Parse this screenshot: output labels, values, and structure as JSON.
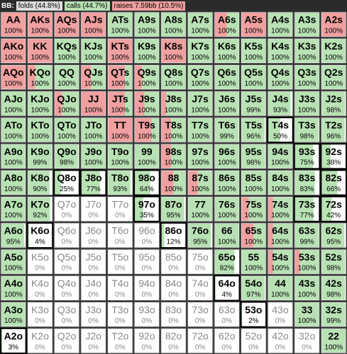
{
  "header": {
    "player": "BB:",
    "folds": "folds (44.8%)",
    "calls": "calls (44.7%)",
    "raises": "raises 7.59bb (10.5%)"
  },
  "grid": {
    "rows": [
      {
        "hands": [
          "AA",
          "AKs",
          "AQs",
          "AJs",
          "ATs",
          "A9s",
          "A8s",
          "A7s",
          "A6s",
          "A5s",
          "A4s",
          "A3s",
          "A2s"
        ],
        "pcts": [
          "100%",
          "100%",
          "100%",
          "100%",
          "100%",
          "100%",
          "100%",
          "100%",
          "100%",
          "100%",
          "100%",
          "100%",
          "100%"
        ],
        "raise": [
          100,
          100,
          100,
          100,
          0,
          0,
          0,
          0,
          50,
          100,
          0,
          0,
          100
        ]
      },
      {
        "hands": [
          "AKo",
          "KK",
          "KQs",
          "KJs",
          "KTs",
          "K9s",
          "K8s",
          "K7s",
          "K6s",
          "K5s",
          "K4s",
          "K3s",
          "K2s"
        ],
        "pcts": [
          "100%",
          "100%",
          "100%",
          "100%",
          "100%",
          "100%",
          "100%",
          "100%",
          "100%",
          "100%",
          "100%",
          "100%",
          "100%"
        ],
        "raise": [
          100,
          100,
          0,
          0,
          100,
          0,
          100,
          0,
          0,
          0,
          0,
          0,
          0
        ]
      },
      {
        "hands": [
          "AQo",
          "KQo",
          "QQ",
          "QJs",
          "QTs",
          "Q9s",
          "Q8s",
          "Q7s",
          "Q6s",
          "Q5s",
          "Q4s",
          "Q3s",
          "Q2s"
        ],
        "pcts": [
          "100%",
          "100%",
          "100%",
          "100%",
          "100%",
          "100%",
          "100%",
          "100%",
          "100%",
          "100%",
          "100%",
          "100%",
          "100%"
        ],
        "raise": [
          100,
          30,
          0,
          40,
          70,
          30,
          0,
          0,
          0,
          0,
          0,
          0,
          0
        ]
      },
      {
        "hands": [
          "AJo",
          "KJo",
          "QJo",
          "JJ",
          "JTs",
          "J9s",
          "J8s",
          "J7s",
          "J6s",
          "J5s",
          "J4s",
          "J3s",
          "J2s"
        ],
        "pcts": [
          "100%",
          "100%",
          "100%",
          "100%",
          "100%",
          "100%",
          "100%",
          "100%",
          "100%",
          "99%",
          "93%",
          "100%",
          "98%"
        ],
        "raise": [
          0,
          0,
          30,
          100,
          70,
          40,
          20,
          0,
          0,
          0,
          0,
          0,
          0
        ]
      },
      {
        "hands": [
          "ATo",
          "KTo",
          "QTo",
          "JTo",
          "TT",
          "T9s",
          "T8s",
          "T7s",
          "T6s",
          "T5s",
          "T4s",
          "T3s",
          "T2s"
        ],
        "pcts": [
          "100%",
          "100%",
          "100%",
          "100%",
          "100%",
          "100%",
          "100%",
          "100%",
          "99%",
          "96%",
          "50%",
          "98%",
          "96%"
        ],
        "raise": [
          0,
          0,
          0,
          0,
          100,
          70,
          40,
          0,
          0,
          0,
          0,
          0,
          0
        ]
      },
      {
        "hands": [
          "A9o",
          "K9o",
          "Q9o",
          "J9o",
          "T9o",
          "99",
          "98s",
          "97s",
          "96s",
          "95s",
          "94s",
          "93s",
          "92s"
        ],
        "pcts": [
          "100%",
          "99%",
          "98%",
          "100%",
          "100%",
          "100%",
          "100%",
          "100%",
          "100%",
          "98%",
          "100%",
          "75%",
          "38%"
        ],
        "raise": [
          0,
          0,
          0,
          0,
          0,
          0,
          40,
          0,
          0,
          0,
          0,
          0,
          0
        ]
      },
      {
        "hands": [
          "A8o",
          "K8o",
          "Q8o",
          "J8o",
          "T8o",
          "98o",
          "88",
          "87s",
          "86s",
          "85s",
          "84s",
          "83s",
          "82s"
        ],
        "pcts": [
          "100%",
          "90%",
          "25%",
          "77%",
          "93%",
          "64%",
          "100%",
          "100%",
          "100%",
          "100%",
          "100%",
          "83%",
          "66%"
        ],
        "raise": [
          0,
          0,
          0,
          0,
          0,
          0,
          50,
          40,
          0,
          0,
          0,
          0,
          0
        ]
      },
      {
        "hands": [
          "A7o",
          "K7o",
          "Q7o",
          "J7o",
          "T7o",
          "97o",
          "87o",
          "77",
          "76s",
          "75s",
          "74s",
          "73s",
          "72s"
        ],
        "pcts": [
          "100%",
          "92%",
          "0%",
          "0%",
          "0%",
          "35%",
          "95%",
          "100%",
          "100%",
          "100%",
          "100%",
          "77%",
          "42%"
        ],
        "raise": [
          0,
          0,
          0,
          0,
          0,
          0,
          0,
          0,
          0,
          30,
          20,
          0,
          0
        ]
      },
      {
        "hands": [
          "A6o",
          "K6o",
          "Q6o",
          "J6o",
          "T6o",
          "96o",
          "86o",
          "76o",
          "66",
          "65s",
          "64s",
          "63s",
          "62s"
        ],
        "pcts": [
          "95%",
          "4%",
          "0%",
          "0%",
          "0%",
          "0%",
          "12%",
          "95%",
          "100%",
          "100%",
          "100%",
          "99%",
          "95%"
        ],
        "raise": [
          0,
          0,
          0,
          0,
          0,
          0,
          0,
          0,
          0,
          50,
          20,
          0,
          0
        ]
      },
      {
        "hands": [
          "A5o",
          "K5o",
          "Q5o",
          "J5o",
          "T5o",
          "95o",
          "85o",
          "75o",
          "65o",
          "55",
          "54s",
          "53s",
          "52s"
        ],
        "pcts": [
          "100%",
          "0%",
          "0%",
          "0%",
          "0%",
          "0%",
          "0%",
          "0%",
          "82%",
          "100%",
          "100%",
          "100%",
          "98%"
        ],
        "raise": [
          0,
          0,
          0,
          0,
          0,
          0,
          0,
          0,
          0,
          0,
          20,
          20,
          0
        ]
      },
      {
        "hands": [
          "A4o",
          "K4o",
          "Q4o",
          "J4o",
          "T4o",
          "94o",
          "84o",
          "74o",
          "64o",
          "54o",
          "44",
          "43s",
          "42s"
        ],
        "pcts": [
          "100%",
          "0%",
          "0%",
          "0%",
          "0%",
          "0%",
          "0%",
          "0%",
          "4%",
          "97%",
          "100%",
          "100%",
          "98%"
        ],
        "raise": [
          0,
          0,
          0,
          0,
          0,
          0,
          0,
          0,
          0,
          0,
          0,
          0,
          0
        ]
      },
      {
        "hands": [
          "A3o",
          "K3o",
          "Q3o",
          "J3o",
          "T3o",
          "93o",
          "83o",
          "73o",
          "63o",
          "53o",
          "43o",
          "33",
          "32s"
        ],
        "pcts": [
          "100%",
          "0%",
          "0%",
          "0%",
          "0%",
          "0%",
          "0%",
          "0%",
          "0%",
          "2%",
          "0%",
          "100%",
          "99%"
        ],
        "raise": [
          0,
          0,
          0,
          0,
          0,
          0,
          0,
          0,
          0,
          0,
          0,
          0,
          0
        ]
      },
      {
        "hands": [
          "A2o",
          "K2o",
          "Q2o",
          "J2o",
          "T2o",
          "92o",
          "82o",
          "72o",
          "62o",
          "52o",
          "42o",
          "32o",
          "22"
        ],
        "pcts": [
          "3%",
          "0%",
          "0%",
          "0%",
          "0%",
          "0%",
          "0%",
          "0%",
          "0%",
          "0%",
          "0%",
          "0%",
          "100%"
        ],
        "raise": [
          0,
          0,
          0,
          0,
          0,
          0,
          0,
          0,
          0,
          0,
          0,
          0,
          0
        ]
      }
    ]
  }
}
